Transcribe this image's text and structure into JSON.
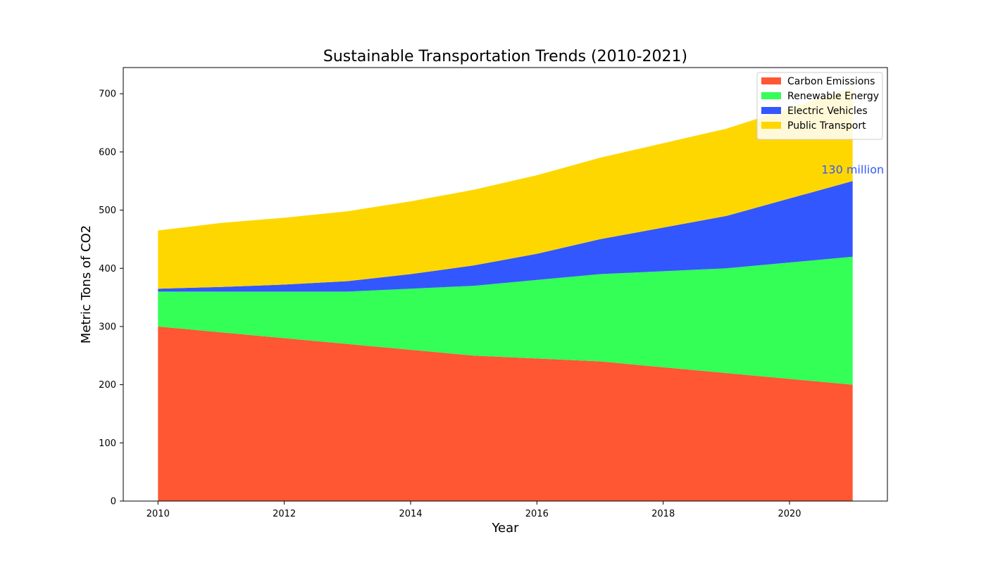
{
  "chart_data": {
    "type": "area",
    "stacked": true,
    "title": "Sustainable Transportation Trends (2010-2021)",
    "xlabel": "Year",
    "ylabel": "Metric Tons of CO2",
    "x": [
      2010,
      2011,
      2012,
      2013,
      2014,
      2015,
      2016,
      2017,
      2018,
      2019,
      2020,
      2021
    ],
    "xlim": [
      2009.45,
      2021.55
    ],
    "ylim": [
      0,
      745
    ],
    "xticks": [
      2010,
      2012,
      2014,
      2016,
      2018,
      2020
    ],
    "yticks": [
      0,
      100,
      200,
      300,
      400,
      500,
      600,
      700
    ],
    "grid": false,
    "legend_position": "top-right",
    "series": [
      {
        "name": "Carbon Emissions",
        "color": "#FF5733",
        "values": [
          300,
          290,
          280,
          270,
          260,
          250,
          245,
          240,
          230,
          220,
          210,
          200
        ]
      },
      {
        "name": "Renewable Energy",
        "color": "#33FF57",
        "values": [
          60,
          70,
          80,
          90,
          105,
          120,
          135,
          150,
          165,
          180,
          200,
          220
        ]
      },
      {
        "name": "Electric Vehicles",
        "color": "#3357FF",
        "values": [
          5,
          8,
          12,
          18,
          25,
          35,
          45,
          60,
          75,
          90,
          110,
          130
        ]
      },
      {
        "name": "Public Transport",
        "color": "#FFD700",
        "values": [
          100,
          110,
          115,
          120,
          125,
          130,
          135,
          140,
          145,
          150,
          155,
          160
        ]
      }
    ],
    "annotations": [
      {
        "text": "130 million",
        "x": 2021,
        "y": 570,
        "color": "#3357FF"
      }
    ]
  }
}
